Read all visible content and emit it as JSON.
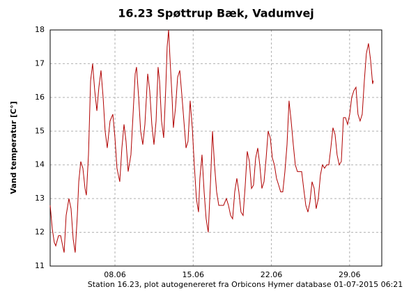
{
  "chart_data": {
    "type": "line",
    "title": "16.23 Spøttrup Bæk, Vadumvej",
    "y_label": "Vand temperatur [C°]",
    "footnote": "Station 16.23, plot autogenereret fra Orbicons Hymer database 01-07-2015 06:21",
    "x": [
      2.2,
      2.39,
      2.57,
      2.7,
      2.95,
      3.14,
      3.32,
      3.45,
      3.63,
      3.88,
      4.07,
      4.26,
      4.44,
      4.63,
      4.76,
      4.94,
      5.13,
      5.32,
      5.44,
      5.63,
      5.82,
      6.0,
      6.19,
      6.38,
      6.56,
      6.75,
      6.94,
      7.12,
      7.31,
      7.56,
      7.81,
      8.0,
      8.18,
      8.43,
      8.62,
      8.81,
      8.99,
      9.18,
      9.43,
      9.62,
      9.81,
      9.93,
      10.12,
      10.3,
      10.49,
      10.68,
      10.93,
      11.11,
      11.3,
      11.49,
      11.68,
      11.86,
      11.99,
      12.17,
      12.36,
      12.55,
      12.67,
      12.8,
      12.92,
      13.11,
      13.23,
      13.42,
      13.61,
      13.8,
      13.98,
      14.17,
      14.36,
      14.54,
      14.73,
      14.92,
      15.1,
      15.29,
      15.48,
      15.6,
      15.79,
      15.98,
      16.16,
      16.35,
      16.54,
      16.73,
      16.91,
      17.1,
      17.29,
      17.54,
      17.72,
      17.97,
      18.16,
      18.35,
      18.53,
      18.72,
      18.91,
      19.09,
      19.28,
      19.47,
      19.66,
      19.84,
      20.03,
      20.22,
      20.4,
      20.59,
      20.78,
      20.96,
      21.15,
      21.34,
      21.53,
      21.71,
      21.9,
      22.09,
      22.27,
      22.46,
      22.65,
      22.83,
      23.02,
      23.21,
      23.4,
      23.58,
      23.77,
      23.96,
      24.14,
      24.33,
      24.52,
      24.71,
      24.89,
      25.08,
      25.27,
      25.45,
      25.64,
      25.83,
      26.01,
      26.2,
      26.39,
      26.57,
      26.76,
      26.95,
      27.14,
      27.32,
      27.51,
      27.7,
      27.88,
      28.07,
      28.26,
      28.45,
      28.63,
      28.82,
      29.01,
      29.19,
      29.38,
      29.57,
      29.75,
      29.94,
      30.13,
      30.32,
      30.5,
      30.69,
      30.88,
      31.06,
      31.13
    ],
    "series": [
      {
        "color": "#b00000",
        "values": [
          12.8,
          12.1,
          11.7,
          11.6,
          11.9,
          11.9,
          11.6,
          11.4,
          12.5,
          13.0,
          12.7,
          11.8,
          11.4,
          12.5,
          13.5,
          14.1,
          13.9,
          13.3,
          13.1,
          14.3,
          16.5,
          17.0,
          16.2,
          15.6,
          16.3,
          16.8,
          16.0,
          15.0,
          14.5,
          15.3,
          15.5,
          14.8,
          13.9,
          13.5,
          14.5,
          15.2,
          14.7,
          13.8,
          14.3,
          15.5,
          16.7,
          16.9,
          16.0,
          15.0,
          14.6,
          15.2,
          16.7,
          16.2,
          15.2,
          14.6,
          15.3,
          16.9,
          16.5,
          15.3,
          14.8,
          16.3,
          17.5,
          18.0,
          17.2,
          16.0,
          15.1,
          15.7,
          16.6,
          16.8,
          16.1,
          15.3,
          14.5,
          14.7,
          15.9,
          15.1,
          14.0,
          13.0,
          12.6,
          13.6,
          14.3,
          13.2,
          12.4,
          12.0,
          13.4,
          15.0,
          14.0,
          13.2,
          12.8,
          12.8,
          12.8,
          13.0,
          12.8,
          12.5,
          12.4,
          13.2,
          13.6,
          13.2,
          12.6,
          12.5,
          13.4,
          14.4,
          14.1,
          13.3,
          13.4,
          14.2,
          14.5,
          14.0,
          13.3,
          13.5,
          14.2,
          15.0,
          14.8,
          14.2,
          14.0,
          13.6,
          13.4,
          13.2,
          13.2,
          13.8,
          14.6,
          15.9,
          15.3,
          14.6,
          14.0,
          13.8,
          13.8,
          13.8,
          13.3,
          12.8,
          12.6,
          12.9,
          13.5,
          13.3,
          12.7,
          13.0,
          13.7,
          14.0,
          13.9,
          14.0,
          14.0,
          14.5,
          15.1,
          14.9,
          14.3,
          14.0,
          14.1,
          15.4,
          15.4,
          15.2,
          15.5,
          16.0,
          16.2,
          16.3,
          15.5,
          15.3,
          15.5,
          16.5,
          17.3,
          17.6,
          17.1,
          16.4,
          16.5
        ]
      }
    ],
    "xlim": [
      2.2,
      31.88
    ],
    "xticks": [
      {
        "value": 8,
        "label": "08.06"
      },
      {
        "value": 15,
        "label": "15.06"
      },
      {
        "value": 22,
        "label": "22.06"
      },
      {
        "value": 29,
        "label": "29.06"
      }
    ],
    "ylim": [
      11,
      18
    ],
    "yticks": [
      11,
      12,
      13,
      14,
      15,
      16,
      17,
      18
    ],
    "grid": true
  }
}
